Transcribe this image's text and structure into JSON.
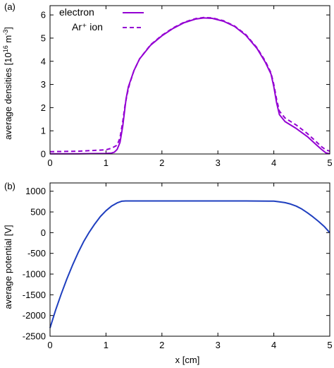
{
  "chart_data": [
    {
      "type": "line",
      "panel_label": "(a)",
      "title": "",
      "xlabel": "",
      "ylabel": "average densities [10",
      "ylabel_exponent": "16",
      "ylabel_unit": " m",
      "ylabel_unit_exponent": "-3",
      "ylabel_close": "]",
      "xlim": [
        0,
        5
      ],
      "ylim": [
        0,
        6.4
      ],
      "xticks": [
        "0",
        "1",
        "2",
        "3",
        "4",
        "5"
      ],
      "yticks": [
        "0",
        "1",
        "2",
        "3",
        "4",
        "5",
        "6"
      ],
      "legend_position": "top-left",
      "series": [
        {
          "name": "electron",
          "style": "solid",
          "color": "#9400d3",
          "x": [
            0,
            0.5,
            1.0,
            1.1,
            1.15,
            1.2,
            1.25,
            1.3,
            1.33,
            1.36,
            1.4,
            1.5,
            1.6,
            1.8,
            2.0,
            2.2,
            2.4,
            2.6,
            2.75,
            2.9,
            3.1,
            3.3,
            3.5,
            3.7,
            3.85,
            3.95,
            4.0,
            4.05,
            4.1,
            4.2,
            4.4,
            4.6,
            4.75,
            4.85,
            4.93,
            5.0
          ],
          "y": [
            0.01,
            0.01,
            0.02,
            0.04,
            0.08,
            0.2,
            0.5,
            1.2,
            1.8,
            2.4,
            2.9,
            3.6,
            4.1,
            4.7,
            5.1,
            5.42,
            5.67,
            5.82,
            5.87,
            5.85,
            5.73,
            5.5,
            5.12,
            4.55,
            3.95,
            3.45,
            2.9,
            2.2,
            1.7,
            1.4,
            1.1,
            0.75,
            0.42,
            0.2,
            0.05,
            0.01
          ]
        },
        {
          "name": "Ar⁺ ion",
          "style": "dashed",
          "color": "#9400d3",
          "x": [
            0,
            0.5,
            1.0,
            1.1,
            1.2,
            1.25,
            1.3,
            1.34,
            1.38,
            1.42,
            1.5,
            1.6,
            1.8,
            2.0,
            2.2,
            2.4,
            2.6,
            2.75,
            2.9,
            3.1,
            3.3,
            3.5,
            3.7,
            3.85,
            3.95,
            4.0,
            4.05,
            4.1,
            4.2,
            4.4,
            4.6,
            4.75,
            4.85,
            4.93,
            5.0
          ],
          "y": [
            0.1,
            0.12,
            0.18,
            0.25,
            0.38,
            0.7,
            1.4,
            2.1,
            2.6,
            3.0,
            3.6,
            4.1,
            4.72,
            5.12,
            5.44,
            5.69,
            5.84,
            5.89,
            5.87,
            5.75,
            5.52,
            5.15,
            4.58,
            4.0,
            3.5,
            3.0,
            2.35,
            1.85,
            1.55,
            1.25,
            0.88,
            0.55,
            0.32,
            0.18,
            0.12
          ]
        }
      ]
    },
    {
      "type": "line",
      "panel_label": "(b)",
      "title": "",
      "xlabel": "x  [cm]",
      "ylabel": "average potential [V]",
      "xlim": [
        0,
        5
      ],
      "ylim": [
        -2500,
        1200
      ],
      "xticks": [
        "0",
        "1",
        "2",
        "3",
        "4",
        "5"
      ],
      "yticks": [
        "1000",
        "500",
        "0",
        "-500",
        "-1000",
        "-1500",
        "-2000",
        "-2500"
      ],
      "series": [
        {
          "style": "solid",
          "color": "#1f3fbf",
          "x": [
            0,
            0.1,
            0.2,
            0.3,
            0.4,
            0.5,
            0.6,
            0.7,
            0.8,
            0.9,
            1.0,
            1.1,
            1.2,
            1.28,
            1.35,
            1.5,
            2.0,
            2.5,
            3.0,
            3.5,
            4.0,
            4.1,
            4.2,
            4.3,
            4.4,
            4.5,
            4.6,
            4.7,
            4.8,
            4.9,
            5.0
          ],
          "y": [
            -2300,
            -1870,
            -1480,
            -1120,
            -790,
            -490,
            -220,
            10,
            210,
            390,
            530,
            640,
            720,
            758,
            765,
            765,
            765,
            765,
            765,
            765,
            760,
            745,
            725,
            690,
            640,
            570,
            480,
            380,
            270,
            150,
            0
          ]
        }
      ]
    }
  ]
}
